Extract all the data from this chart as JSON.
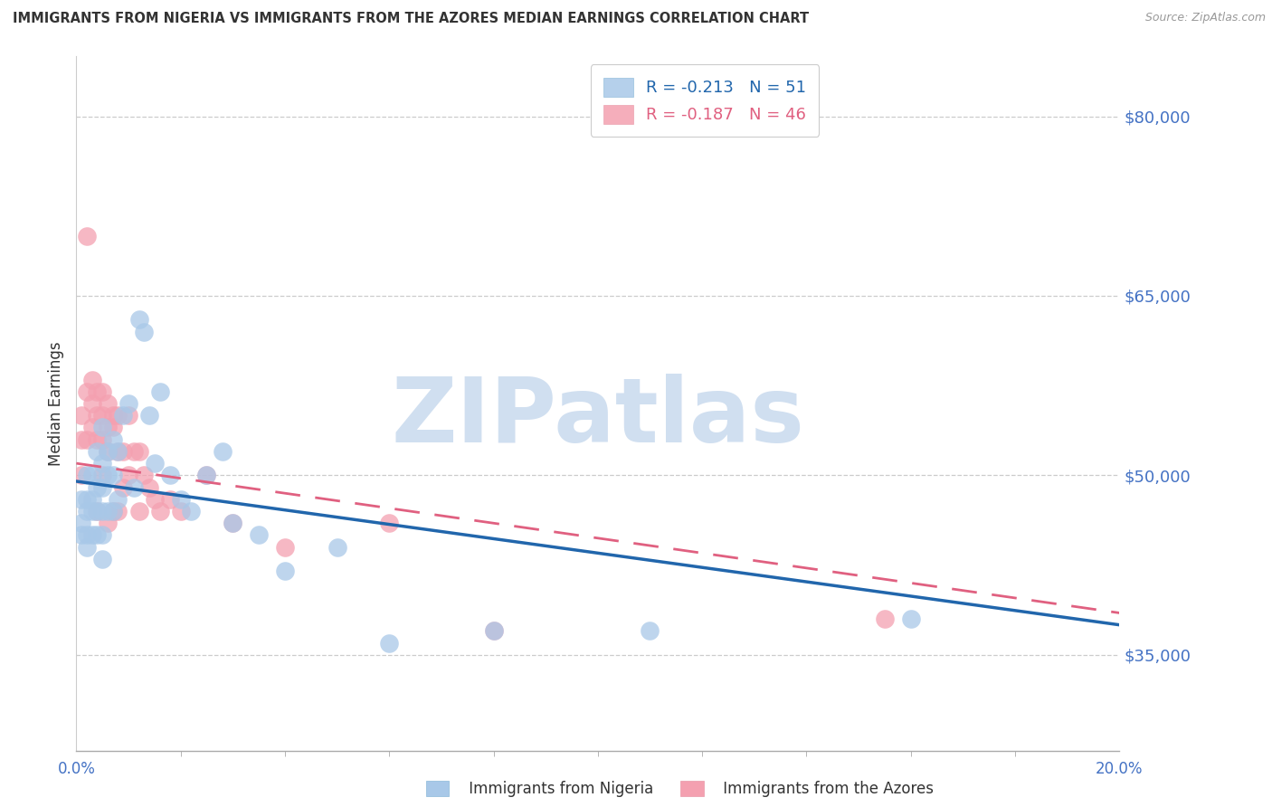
{
  "title": "IMMIGRANTS FROM NIGERIA VS IMMIGRANTS FROM THE AZORES MEDIAN EARNINGS CORRELATION CHART",
  "source": "Source: ZipAtlas.com",
  "ylabel": "Median Earnings",
  "y_ticks": [
    35000,
    50000,
    65000,
    80000
  ],
  "y_tick_labels": [
    "$35,000",
    "$50,000",
    "$65,000",
    "$80,000"
  ],
  "x_min": 0.0,
  "x_max": 0.2,
  "y_min": 27000,
  "y_max": 85000,
  "nigeria_color": "#a8c8e8",
  "azores_color": "#f4a0b0",
  "nigeria_R": -0.213,
  "nigeria_N": 51,
  "azores_R": -0.187,
  "azores_N": 46,
  "nigeria_line_color": "#2166ac",
  "azores_line_color": "#e06080",
  "watermark": "ZIPatlas",
  "watermark_color": "#d0dff0",
  "nigeria_x": [
    0.001,
    0.001,
    0.001,
    0.002,
    0.002,
    0.002,
    0.002,
    0.002,
    0.003,
    0.003,
    0.003,
    0.003,
    0.004,
    0.004,
    0.004,
    0.004,
    0.005,
    0.005,
    0.005,
    0.005,
    0.005,
    0.005,
    0.006,
    0.006,
    0.006,
    0.007,
    0.007,
    0.007,
    0.008,
    0.008,
    0.009,
    0.01,
    0.011,
    0.012,
    0.013,
    0.014,
    0.015,
    0.016,
    0.018,
    0.02,
    0.022,
    0.025,
    0.028,
    0.03,
    0.035,
    0.04,
    0.05,
    0.06,
    0.08,
    0.11,
    0.16
  ],
  "nigeria_y": [
    48000,
    46000,
    45000,
    50000,
    48000,
    47000,
    45000,
    44000,
    50000,
    48000,
    47000,
    45000,
    52000,
    49000,
    47000,
    45000,
    54000,
    51000,
    49000,
    47000,
    45000,
    43000,
    52000,
    50000,
    47000,
    53000,
    50000,
    47000,
    52000,
    48000,
    55000,
    56000,
    49000,
    63000,
    62000,
    55000,
    51000,
    57000,
    50000,
    48000,
    47000,
    50000,
    52000,
    46000,
    45000,
    42000,
    44000,
    36000,
    37000,
    37000,
    38000
  ],
  "azores_x": [
    0.001,
    0.001,
    0.001,
    0.002,
    0.002,
    0.002,
    0.003,
    0.003,
    0.003,
    0.004,
    0.004,
    0.004,
    0.004,
    0.005,
    0.005,
    0.005,
    0.005,
    0.006,
    0.006,
    0.006,
    0.006,
    0.007,
    0.007,
    0.007,
    0.008,
    0.008,
    0.008,
    0.009,
    0.009,
    0.01,
    0.01,
    0.011,
    0.012,
    0.012,
    0.013,
    0.014,
    0.015,
    0.016,
    0.018,
    0.02,
    0.025,
    0.03,
    0.04,
    0.06,
    0.08,
    0.155
  ],
  "azores_y": [
    55000,
    53000,
    50000,
    70000,
    57000,
    53000,
    58000,
    56000,
    54000,
    57000,
    55000,
    53000,
    47000,
    57000,
    55000,
    53000,
    50000,
    56000,
    54000,
    52000,
    46000,
    55000,
    54000,
    47000,
    55000,
    52000,
    47000,
    52000,
    49000,
    55000,
    50000,
    52000,
    52000,
    47000,
    50000,
    49000,
    48000,
    47000,
    48000,
    47000,
    50000,
    46000,
    44000,
    46000,
    37000,
    38000
  ],
  "nigeria_trend_x0": 0.0,
  "nigeria_trend_y0": 49500,
  "nigeria_trend_x1": 0.2,
  "nigeria_trend_y1": 37500,
  "azores_trend_x0": 0.0,
  "azores_trend_y0": 51000,
  "azores_trend_x1": 0.2,
  "azores_trend_y1": 38500
}
